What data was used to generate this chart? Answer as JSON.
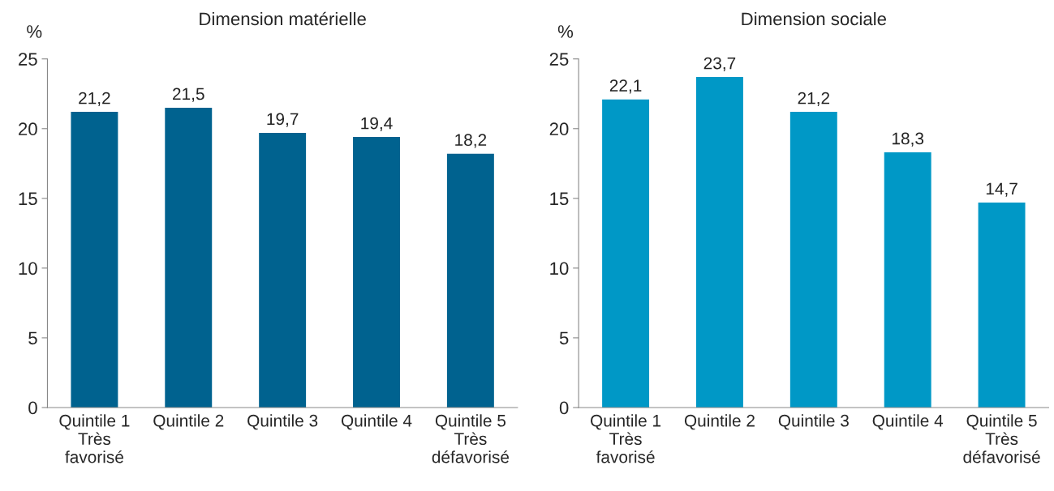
{
  "chart_data": [
    {
      "type": "bar",
      "title": "Dimension matérielle",
      "ylabel": "%",
      "categories": [
        "Quintile 1\nTrès\nfavorisé",
        "Quintile 2",
        "Quintile 3",
        "Quintile 4",
        "Quintile 5\nTrès\ndéfavorisé"
      ],
      "values": [
        21.2,
        21.5,
        19.7,
        19.4,
        18.2
      ],
      "color": "#00628f",
      "value_labels": [
        "21,2",
        "21,5",
        "19,7",
        "19,4",
        "18,2"
      ],
      "ylim": [
        0,
        25
      ],
      "yticks": [
        0,
        5,
        10,
        15,
        20,
        25
      ],
      "grid": false,
      "legend": false
    },
    {
      "type": "bar",
      "title": "Dimension sociale",
      "ylabel": "%",
      "categories": [
        "Quintile 1\nTrès\nfavorisé",
        "Quintile 2",
        "Quintile 3",
        "Quintile 4",
        "Quintile 5\nTrès\ndéfavorisé"
      ],
      "values": [
        22.1,
        23.7,
        21.2,
        18.3,
        14.7
      ],
      "color": "#0098c6",
      "value_labels": [
        "22,1",
        "23,7",
        "21,2",
        "18,3",
        "14,7"
      ],
      "ylim": [
        0,
        25
      ],
      "yticks": [
        0,
        5,
        10,
        15,
        20,
        25
      ],
      "grid": false,
      "legend": false
    }
  ]
}
